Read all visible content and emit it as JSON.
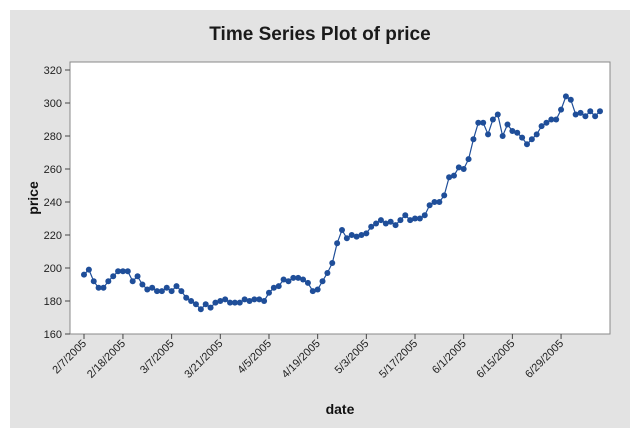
{
  "chart_data": {
    "type": "line",
    "title": "Time Series Plot of price",
    "xlabel": "date",
    "ylabel": "price",
    "ylim": [
      160,
      320
    ],
    "yticks": [
      160,
      180,
      200,
      220,
      240,
      260,
      280,
      300,
      320
    ],
    "x_tick_labels": [
      "2/7/2005",
      "2/18/2005",
      "3/7/2005",
      "3/21/2005",
      "4/5/2005",
      "4/19/2005",
      "5/3/2005",
      "5/17/2005",
      "6/1/2005",
      "6/15/2005",
      "6/29/2005"
    ],
    "x_tick_index": [
      0,
      8,
      18,
      28,
      38,
      48,
      58,
      68,
      78,
      88,
      98
    ],
    "grid": false,
    "marker": "circle",
    "colors": {
      "series": "#1f4e99",
      "background": "#e3e3e3",
      "plot_area": "#ffffff"
    },
    "series": [
      {
        "values": [
          196,
          199,
          192,
          188,
          188,
          192,
          195,
          198,
          198,
          198,
          192,
          195,
          190,
          187,
          188,
          186,
          186,
          188,
          186,
          189,
          186,
          182,
          180,
          178,
          175,
          178,
          176,
          179,
          180,
          181,
          179,
          179,
          179,
          181,
          180,
          181,
          181,
          180,
          185,
          188,
          189,
          193,
          192,
          194,
          194,
          193,
          191,
          186,
          187,
          192,
          197,
          203,
          215,
          223,
          218,
          220,
          219,
          220,
          221,
          225,
          227,
          229,
          227,
          228,
          226,
          229,
          232,
          229,
          230,
          230,
          232,
          238,
          240,
          240,
          244,
          255,
          256,
          261,
          260,
          266,
          278,
          288,
          288,
          281,
          290,
          293,
          280,
          287,
          283,
          282,
          279,
          275,
          278,
          281,
          286,
          288,
          290,
          290,
          296,
          304,
          302,
          293,
          294,
          292,
          295,
          292,
          295
        ]
      }
    ]
  }
}
